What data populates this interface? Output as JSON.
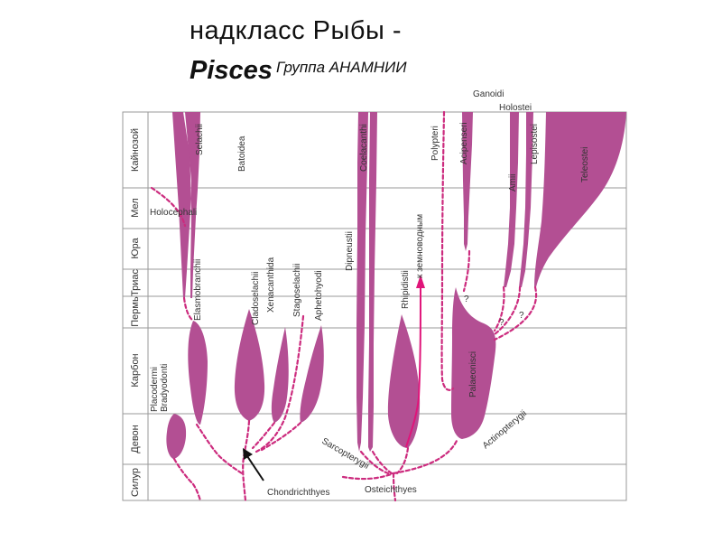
{
  "title": "надкласс Рыбы  -",
  "title_italic": "Pisces",
  "subtitle": "Группа АНАМНИИ",
  "colors": {
    "fill": "#b34f93",
    "line": "#cc2b7e",
    "arrow": "#e0157a",
    "grid": "#999999",
    "axis_text": "#333333"
  },
  "periods": [
    "Кайнозой",
    "Мел",
    "Юра",
    "Триас",
    "Пермь",
    "Карбон",
    "Девон",
    "Силур"
  ],
  "top_labels": {
    "ganoidi": "Ganoidi",
    "holostei": "Holostei"
  },
  "taxa": {
    "selachii": "Selachii",
    "batoidea": "Batoidea",
    "holocephali": "Holocephali",
    "elasmobranchii": "Elasmobranchii",
    "cladoselachii": "Cladoselachii",
    "xenacanthida": "Xenacanthida",
    "stagoselachii": "Stagoselachii",
    "aphetohyodi": "Aphetohyodi",
    "placodermi": "Placodermi",
    "bradyodonti": "Bradyodonti",
    "coelacanthi": "Coelacanthi",
    "dipneustii": "Dipneustii",
    "rhipidistii": "Rhipidistii",
    "to_amphibians": "к земноводным",
    "polypteri": "Polypteri",
    "acipenseri": "Acipenseri",
    "amii": "Amii",
    "lepisostei": "Lepisostei",
    "teleostei": "Teleostei",
    "palaeonisci": "Palaeonisci",
    "actinopterygii": "Actinopterygii",
    "sarcopterygii": "Sarcopterygii",
    "osteichthyes": "Osteichthyes",
    "chondrichthyes": "Chondrichthyes"
  },
  "question_marks": [
    "?",
    "?",
    "?"
  ]
}
